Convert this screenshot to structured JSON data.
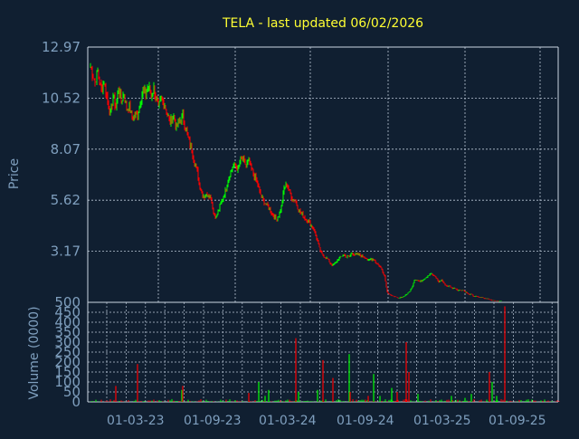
{
  "chart_data": [
    {
      "type": "candlestick",
      "title": "TELA - last updated 06/02/2026",
      "ylabel": "Price",
      "yticks": [
        "12.97",
        "10.52",
        "8.07",
        "5.62",
        "3.17"
      ],
      "ylim": [
        0.72,
        12.97
      ],
      "xticks": [
        "01-03-23",
        "01-09-23",
        "01-03-24",
        "01-09-24",
        "01-03-25",
        "01-09-25"
      ],
      "grid": true,
      "up_color": "#00ff00",
      "down_color": "#ff0000",
      "series": [
        {
          "values": [
            [
              0,
              12.0
            ],
            [
              5,
              11.3
            ],
            [
              8,
              11.8
            ],
            [
              12,
              10.9
            ],
            [
              15,
              11.3
            ],
            [
              18,
              10.6
            ],
            [
              22,
              9.7
            ],
            [
              25,
              10.6
            ],
            [
              28,
              10.1
            ],
            [
              31,
              11.0
            ],
            [
              34,
              10.4
            ],
            [
              37,
              10.7
            ],
            [
              40,
              10.0
            ],
            [
              43,
              10.1
            ],
            [
              46,
              9.6
            ],
            [
              49,
              9.7
            ],
            [
              52,
              9.7
            ],
            [
              55,
              10.4
            ],
            [
              58,
              10.9
            ],
            [
              61,
              10.7
            ],
            [
              64,
              11.1
            ],
            [
              67,
              10.6
            ],
            [
              70,
              11.0
            ],
            [
              73,
              10.4
            ],
            [
              75,
              10.0
            ],
            [
              78,
              10.5
            ],
            [
              82,
              10.2
            ],
            [
              85,
              9.7
            ],
            [
              88,
              9.4
            ],
            [
              92,
              9.6
            ],
            [
              95,
              9.1
            ],
            [
              98,
              9.4
            ],
            [
              102,
              9.7
            ],
            [
              105,
              9.1
            ],
            [
              108,
              8.6
            ],
            [
              112,
              8.0
            ],
            [
              115,
              7.4
            ],
            [
              118,
              7.0
            ],
            [
              120,
              6.4
            ],
            [
              123,
              6.0
            ],
            [
              126,
              5.8
            ],
            [
              130,
              5.9
            ],
            [
              133,
              5.8
            ],
            [
              136,
              5.0
            ],
            [
              139,
              4.8
            ],
            [
              142,
              5.2
            ],
            [
              145,
              5.6
            ],
            [
              148,
              5.9
            ],
            [
              151,
              6.4
            ],
            [
              154,
              6.9
            ],
            [
              157,
              7.2
            ],
            [
              160,
              7.3
            ],
            [
              163,
              7.1
            ],
            [
              166,
              7.6
            ],
            [
              169,
              7.5
            ],
            [
              172,
              7.3
            ],
            [
              175,
              7.5
            ],
            [
              178,
              7.1
            ],
            [
              181,
              6.8
            ],
            [
              184,
              6.5
            ],
            [
              187,
              6.0
            ],
            [
              190,
              5.7
            ],
            [
              193,
              5.5
            ],
            [
              196,
              5.3
            ],
            [
              199,
              5.1
            ],
            [
              202,
              4.9
            ],
            [
              205,
              4.7
            ],
            [
              208,
              4.9
            ],
            [
              211,
              5.3
            ],
            [
              214,
              6.2
            ],
            [
              217,
              6.4
            ],
            [
              220,
              6.0
            ],
            [
              223,
              5.7
            ],
            [
              226,
              5.6
            ],
            [
              229,
              5.3
            ],
            [
              232,
              5.0
            ],
            [
              235,
              4.9
            ],
            [
              238,
              4.7
            ],
            [
              241,
              4.6
            ],
            [
              244,
              4.4
            ],
            [
              247,
              4.2
            ],
            [
              250,
              3.8
            ],
            [
              253,
              3.3
            ],
            [
              256,
              3.0
            ],
            [
              259,
              2.9
            ],
            [
              262,
              2.8
            ],
            [
              265,
              2.6
            ],
            [
              268,
              2.5
            ],
            [
              271,
              2.6
            ],
            [
              274,
              2.8
            ],
            [
              277,
              2.9
            ],
            [
              280,
              3.0
            ],
            [
              283,
              2.9
            ],
            [
              286,
              2.9
            ],
            [
              289,
              3.1
            ],
            [
              292,
              3.0
            ],
            [
              295,
              3.0
            ],
            [
              298,
              3.0
            ],
            [
              301,
              2.9
            ],
            [
              304,
              2.9
            ],
            [
              307,
              2.7
            ],
            [
              310,
              2.8
            ],
            [
              313,
              2.8
            ],
            [
              316,
              2.6
            ],
            [
              319,
              2.5
            ],
            [
              322,
              2.3
            ],
            [
              325,
              2.0
            ],
            [
              328,
              1.2
            ],
            [
              331,
              1.1
            ],
            [
              334,
              1.0
            ],
            [
              337,
              1.0
            ],
            [
              340,
              0.9
            ],
            [
              343,
              0.95
            ],
            [
              346,
              1.0
            ],
            [
              349,
              1.1
            ],
            [
              352,
              1.2
            ],
            [
              355,
              1.4
            ],
            [
              358,
              1.8
            ],
            [
              361,
              1.8
            ],
            [
              364,
              1.7
            ],
            [
              367,
              1.8
            ],
            [
              370,
              1.9
            ],
            [
              373,
              2.0
            ],
            [
              376,
              2.1
            ],
            [
              379,
              2.0
            ],
            [
              382,
              1.9
            ],
            [
              385,
              1.7
            ],
            [
              388,
              1.8
            ],
            [
              391,
              1.6
            ],
            [
              394,
              1.5
            ],
            [
              397,
              1.5
            ],
            [
              400,
              1.4
            ],
            [
              403,
              1.4
            ],
            [
              406,
              1.3
            ],
            [
              409,
              1.3
            ],
            [
              412,
              1.3
            ],
            [
              415,
              1.2
            ],
            [
              418,
              1.1
            ],
            [
              421,
              1.1
            ],
            [
              424,
              1.0
            ],
            [
              427,
              1.0
            ],
            [
              430,
              0.95
            ],
            [
              433,
              0.95
            ],
            [
              436,
              0.9
            ],
            [
              439,
              0.9
            ],
            [
              442,
              0.85
            ],
            [
              445,
              0.8
            ],
            [
              448,
              0.8
            ],
            [
              451,
              0.75
            ],
            [
              454,
              0.8
            ]
          ]
        }
      ]
    },
    {
      "type": "bar",
      "ylabel": "Volume (0000)",
      "yticks": [
        "450",
        "400",
        "350",
        "300",
        "250",
        "200",
        "150",
        "100",
        "50",
        "0"
      ],
      "ylim": [
        0,
        500
      ],
      "ytop_label": "500",
      "grid": true,
      "spikes": [
        [
          28,
          80,
          "red"
        ],
        [
          52,
          190,
          "red"
        ],
        [
          101,
          60,
          "green"
        ],
        [
          102,
          80,
          "red"
        ],
        [
          175,
          45,
          "red"
        ],
        [
          186,
          100,
          "green"
        ],
        [
          193,
          30,
          "green"
        ],
        [
          197,
          60,
          "green"
        ],
        [
          227,
          320,
          "red"
        ],
        [
          230,
          50,
          "green"
        ],
        [
          251,
          60,
          "green"
        ],
        [
          257,
          210,
          "red"
        ],
        [
          268,
          120,
          "red"
        ],
        [
          286,
          240,
          "green"
        ],
        [
          287,
          50,
          "red"
        ],
        [
          307,
          30,
          "red"
        ],
        [
          313,
          140,
          "green"
        ],
        [
          320,
          30,
          "green"
        ],
        [
          333,
          70,
          "green"
        ],
        [
          339,
          50,
          "red"
        ],
        [
          349,
          300,
          "red"
        ],
        [
          352,
          150,
          "red"
        ],
        [
          362,
          40,
          "green"
        ],
        [
          399,
          30,
          "green"
        ],
        [
          414,
          20,
          "green"
        ],
        [
          421,
          40,
          "green"
        ],
        [
          441,
          150,
          "red"
        ],
        [
          444,
          100,
          "green"
        ],
        [
          449,
          30,
          "green"
        ],
        [
          458,
          480,
          "red"
        ]
      ]
    }
  ]
}
